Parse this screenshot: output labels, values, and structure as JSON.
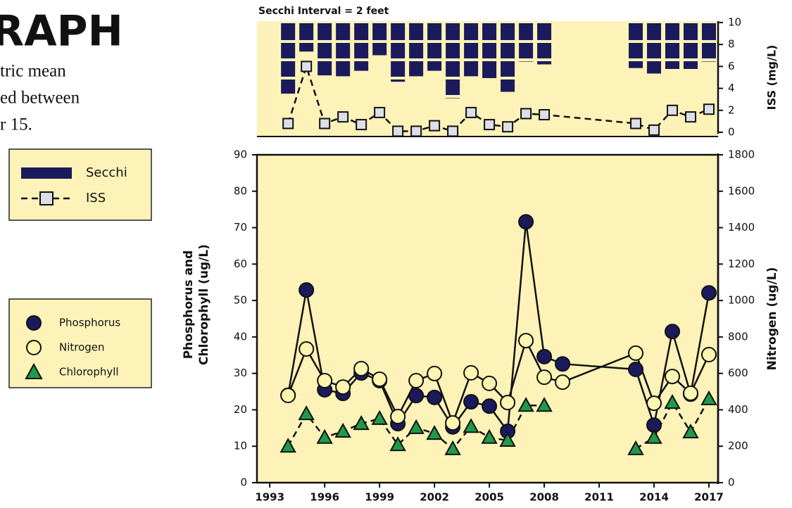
{
  "page": {
    "heading": "RAPH",
    "lines": [
      "tric mean",
      "ed between",
      "r 15."
    ]
  },
  "chart_data": [
    {
      "type": "combo",
      "title": "Secchi Interval = 2 feet",
      "x": [
        1994,
        1995,
        1996,
        1997,
        1998,
        1999,
        2000,
        2001,
        2002,
        2003,
        2004,
        2005,
        2006,
        2007,
        2008,
        2013,
        2014,
        2015,
        2016,
        2017
      ],
      "xlim": [
        1992.3,
        2017.5
      ],
      "y2label": "ISS (mg/L)",
      "y2lim": [
        0,
        10
      ],
      "y2ticks": [
        0,
        2,
        4,
        6,
        8,
        10
      ],
      "series": [
        {
          "name": "Secchi",
          "type": "hanging-bar",
          "color": "#1b1a5c",
          "values": [
            7.7,
            3.1,
            5.7,
            5.8,
            5.2,
            3.5,
            6.4,
            5.8,
            5.2,
            8.2,
            5.8,
            6.0,
            7.5,
            4.2,
            4.5,
            4.9,
            5.5,
            5.0,
            5.0,
            4.2
          ]
        },
        {
          "name": "ISS",
          "type": "line",
          "axis": "y2",
          "color": "#dcdfe6",
          "marker": "square",
          "dash": true,
          "values": [
            0.8,
            6.0,
            0.8,
            1.4,
            0.7,
            1.8,
            0.1,
            0.1,
            0.6,
            0.1,
            1.8,
            0.7,
            0.5,
            1.7,
            1.6,
            0.8,
            0.2,
            2.0,
            1.4,
            2.1
          ]
        }
      ]
    },
    {
      "type": "line",
      "x": [
        1994,
        1995,
        1996,
        1997,
        1998,
        1999,
        2000,
        2001,
        2002,
        2003,
        2004,
        2005,
        2006,
        2007,
        2008,
        2009,
        2013,
        2014,
        2015,
        2016,
        2017
      ],
      "xlim": [
        1992.3,
        2017.5
      ],
      "xticks": [
        1993,
        1996,
        1999,
        2002,
        2005,
        2008,
        2011,
        2014,
        2017
      ],
      "ylabel": [
        "Phosphorus and",
        "Chlorophyll (ug/L)"
      ],
      "ylim": [
        0,
        90
      ],
      "yticks": [
        0,
        10,
        20,
        30,
        40,
        50,
        60,
        70,
        80,
        90
      ],
      "y2label": "Nitrogen (ug/L)",
      "y2lim": [
        0,
        1800
      ],
      "y2ticks": [
        0,
        200,
        400,
        600,
        800,
        1000,
        1200,
        1400,
        1600,
        1800
      ],
      "series": [
        {
          "name": "Phosphorus",
          "color": "#1b1a5c",
          "marker": "circle",
          "values": [
            24,
            52.9,
            25.5,
            24.5,
            30.1,
            28,
            16.2,
            23.9,
            23.4,
            15.3,
            22.2,
            21.0,
            14.1,
            71.6,
            34.6,
            32.6,
            31.1,
            15.8,
            41.5,
            24.3,
            52.1
          ]
        },
        {
          "name": "Nitrogen",
          "color": "#fdf6b0",
          "marker": "circle",
          "axis": "y2",
          "values": [
            479,
            734,
            560,
            525,
            626,
            568,
            363,
            560,
            599,
            328,
            603,
            545,
            440,
            780,
            579,
            552,
            711,
            436,
            583,
            491,
            703
          ]
        },
        {
          "name": "Chlorophyll",
          "color": "#1f9a4b",
          "marker": "triangle",
          "dash": true,
          "values": [
            10.0,
            18.9,
            12.4,
            14.1,
            16.2,
            17.6,
            10.4,
            15.1,
            13.5,
            9.3,
            15.4,
            12.4,
            11.6,
            21.2,
            21.2,
            null,
            9.3,
            12.4,
            22.0,
            13.9,
            23.0
          ]
        }
      ]
    }
  ]
}
